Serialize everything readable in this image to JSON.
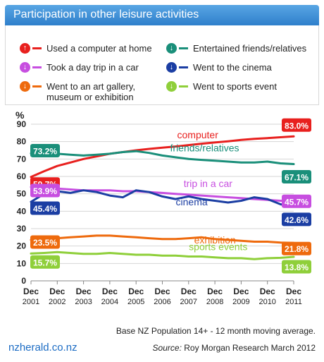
{
  "header": {
    "title": "Participation in other leisure activities"
  },
  "legend": [
    {
      "id": "computer",
      "icon": "arrow-up-icon",
      "glyph": "↑",
      "color": "#e8201e",
      "label_lines": [
        "Used a computer at home"
      ]
    },
    {
      "id": "friends",
      "icon": "arrow-down-icon",
      "glyph": "↓",
      "color": "#1a8f7a",
      "label_lines": [
        "Entertained friends/relatives"
      ]
    },
    {
      "id": "trip",
      "icon": "arrow-down-icon",
      "glyph": "↓",
      "color": "#c74ee0",
      "label_lines": [
        "Took a day trip in a car"
      ]
    },
    {
      "id": "cinema",
      "icon": "arrow-down-icon",
      "glyph": "↓",
      "color": "#1b3ea3",
      "label_lines": [
        "Went to the cinema"
      ]
    },
    {
      "id": "exhibition",
      "icon": "arrow-down-icon",
      "glyph": "↓",
      "color": "#ee6a0d",
      "label_lines": [
        "Went to an art gallery,",
        "museum or exhibition"
      ]
    },
    {
      "id": "sports",
      "icon": "arrow-down-icon",
      "glyph": "↓",
      "color": "#8fcf3a",
      "label_lines": [
        "Went to sports event"
      ]
    }
  ],
  "chart_data": {
    "type": "line",
    "ylabel": "%",
    "ylim": [
      0,
      90
    ],
    "yticks": [
      0,
      10,
      20,
      30,
      40,
      50,
      60,
      70,
      80,
      90
    ],
    "xlim": [
      2001.9,
      2011.9
    ],
    "xticks": [
      {
        "year": 2001.9,
        "line1": "Dec",
        "line2": "2001"
      },
      {
        "year": 2002.9,
        "line1": "Dec",
        "line2": "2002"
      },
      {
        "year": 2003.9,
        "line1": "Dec",
        "line2": "2003"
      },
      {
        "year": 2004.9,
        "line1": "Dec",
        "line2": "2004"
      },
      {
        "year": 2005.9,
        "line1": "Dec",
        "line2": "2005"
      },
      {
        "year": 2006.9,
        "line1": "Dec",
        "line2": "2006"
      },
      {
        "year": 2007.9,
        "line1": "Dec",
        "line2": "2007"
      },
      {
        "year": 2008.9,
        "line1": "Dec",
        "line2": "2008"
      },
      {
        "year": 2009.9,
        "line1": "Dec",
        "line2": "2009"
      },
      {
        "year": 2010.9,
        "line1": "Dec",
        "line2": "2010"
      },
      {
        "year": 2011.9,
        "line1": "Dec",
        "line2": "2011"
      }
    ],
    "grid": true,
    "series": [
      {
        "id": "computer",
        "name": "computer",
        "color": "#e8201e",
        "x": [
          2001.9,
          2002.4,
          2002.9,
          2003.4,
          2003.9,
          2004.4,
          2004.9,
          2005.4,
          2005.9,
          2006.4,
          2006.9,
          2007.4,
          2007.9,
          2008.4,
          2008.9,
          2009.4,
          2009.9,
          2010.4,
          2010.9,
          2011.4,
          2011.9
        ],
        "y": [
          59.7,
          63,
          66,
          68,
          70,
          71.5,
          73,
          74,
          75,
          75.8,
          76.5,
          77.2,
          78,
          78.8,
          79.5,
          80.2,
          81,
          81.6,
          82,
          82.5,
          83.0
        ],
        "start_label": "59.7%",
        "end_label": "83.0%"
      },
      {
        "id": "friends",
        "name": "friends/relatives",
        "color": "#1a8f7a",
        "x": [
          2001.9,
          2002.4,
          2002.9,
          2003.4,
          2003.9,
          2004.4,
          2004.9,
          2005.4,
          2005.9,
          2006.4,
          2006.9,
          2007.4,
          2007.9,
          2008.4,
          2008.9,
          2009.4,
          2009.9,
          2010.4,
          2010.9,
          2011.4,
          2011.9
        ],
        "y": [
          73.2,
          73.5,
          73,
          72.5,
          72,
          72.5,
          73,
          74,
          74.5,
          73.5,
          72,
          71,
          70,
          69.5,
          69,
          68.5,
          68,
          68,
          68.5,
          67.5,
          67.1
        ],
        "start_label": "73.2%",
        "end_label": "67.1%"
      },
      {
        "id": "trip",
        "name": "trip in a car",
        "color": "#c74ee0",
        "x": [
          2001.9,
          2002.4,
          2002.9,
          2003.4,
          2003.9,
          2004.4,
          2004.9,
          2005.4,
          2005.9,
          2006.4,
          2006.9,
          2007.4,
          2007.9,
          2008.4,
          2008.9,
          2009.4,
          2009.9,
          2010.4,
          2010.9,
          2011.4,
          2011.9
        ],
        "y": [
          53.9,
          53.5,
          53,
          52.5,
          52,
          52,
          52,
          51.5,
          51.5,
          51,
          50.5,
          50,
          49.5,
          49,
          48.5,
          48,
          47.5,
          47,
          46.5,
          46,
          45.7
        ],
        "start_label": "53.9%",
        "end_label": "45.7%"
      },
      {
        "id": "cinema",
        "name": "cinema",
        "color": "#1b3ea3",
        "x": [
          2001.9,
          2002.4,
          2002.9,
          2003.4,
          2003.9,
          2004.4,
          2004.9,
          2005.4,
          2005.9,
          2006.4,
          2006.9,
          2007.4,
          2007.9,
          2008.4,
          2008.9,
          2009.4,
          2009.9,
          2010.4,
          2010.9,
          2011.4,
          2011.9
        ],
        "y": [
          45.4,
          50,
          51.5,
          50.5,
          52,
          51,
          49,
          48,
          52,
          51,
          48.5,
          47,
          48.5,
          47,
          46,
          45,
          46,
          48,
          47,
          44,
          42.6
        ],
        "start_label": "45.4%",
        "end_label": "42.6%"
      },
      {
        "id": "exhibition",
        "name": "exhibition",
        "color": "#ee6a0d",
        "x": [
          2001.9,
          2002.4,
          2002.9,
          2003.4,
          2003.9,
          2004.4,
          2004.9,
          2005.4,
          2005.9,
          2006.4,
          2006.9,
          2007.4,
          2007.9,
          2008.4,
          2008.9,
          2009.4,
          2009.9,
          2010.4,
          2010.9,
          2011.4,
          2011.9
        ],
        "y": [
          23.5,
          24,
          24.5,
          25,
          25.5,
          26,
          26,
          25.5,
          25,
          24.5,
          24,
          24,
          24.5,
          25,
          24,
          23.5,
          23,
          22.5,
          22.5,
          22,
          21.8
        ],
        "start_label": "23.5%",
        "end_label": "21.8%"
      },
      {
        "id": "sports",
        "name": "sports events",
        "color": "#8fcf3a",
        "x": [
          2001.9,
          2002.4,
          2002.9,
          2003.4,
          2003.9,
          2004.4,
          2004.9,
          2005.4,
          2005.9,
          2006.4,
          2006.9,
          2007.4,
          2007.9,
          2008.4,
          2008.9,
          2009.4,
          2009.9,
          2010.4,
          2010.9,
          2011.4,
          2011.9
        ],
        "y": [
          15.7,
          16,
          16.5,
          16,
          15.5,
          15.5,
          16,
          15.5,
          15,
          15,
          14.5,
          14.5,
          14,
          14,
          13.5,
          13,
          13,
          12.5,
          13,
          13.2,
          13.8
        ],
        "start_label": "15.7%",
        "end_label": "13.8%"
      }
    ]
  },
  "note": "Base NZ Population 14+ - 12 month moving average.",
  "footer": {
    "logo_main": "nzherald",
    "logo_domain": ".co.nz",
    "source_label": "Source:",
    "source_text": " Roy Morgan Research March 2012"
  }
}
